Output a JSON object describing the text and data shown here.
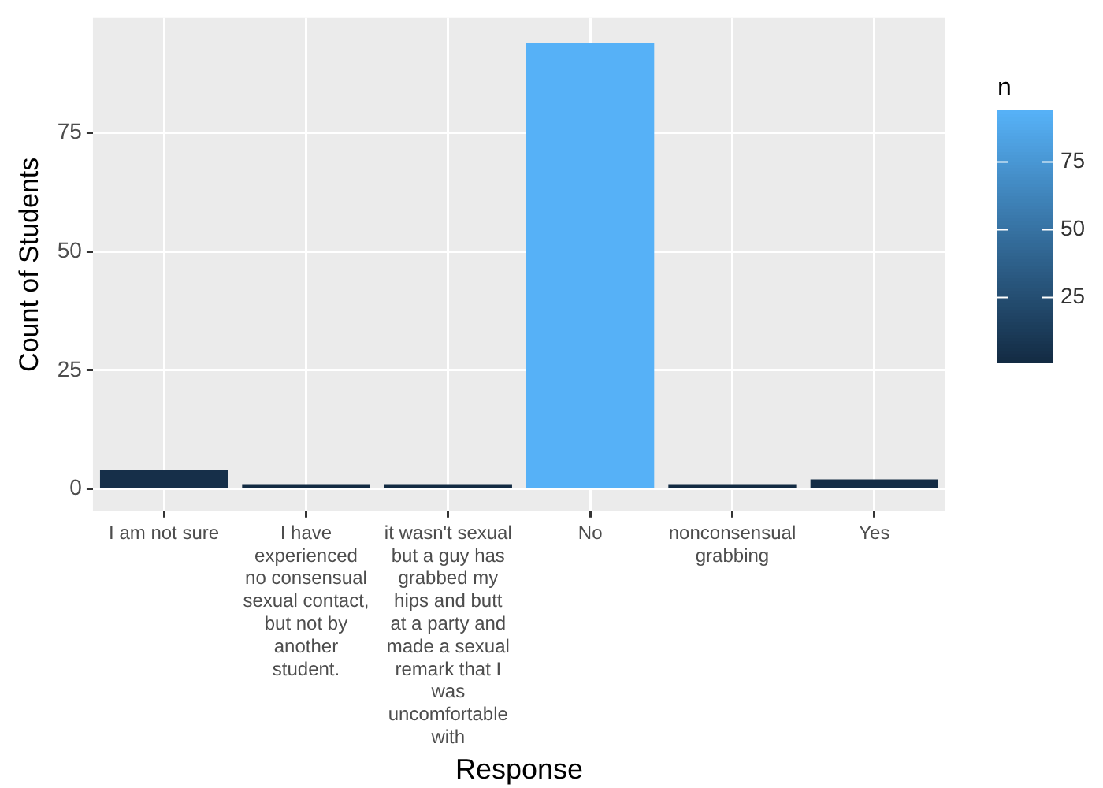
{
  "chart_data": {
    "type": "bar",
    "xlabel": "Response",
    "ylabel": "Count of Students",
    "clabel": "n",
    "categories": [
      "I am not sure",
      "I have experienced no consensual sexual contact, but not by another student.",
      "it wasn't sexual but a guy has grabbed my hips and butt at a party and made a sexual remark that I was uncomfortable with",
      "No",
      "nonconsensual grabbing",
      "Yes"
    ],
    "values": [
      4,
      1,
      1,
      94,
      1,
      2
    ],
    "colors": [
      "#162f49",
      "#132b43",
      "#132b43",
      "#56b1f7",
      "#132b43",
      "#142c45"
    ],
    "ylim": [
      -4.7,
      99.2
    ],
    "yticks": [
      0,
      25,
      50,
      75
    ],
    "clim": [
      1,
      94
    ],
    "cticks": [
      25,
      50,
      75
    ],
    "grid": true,
    "legend": false
  }
}
